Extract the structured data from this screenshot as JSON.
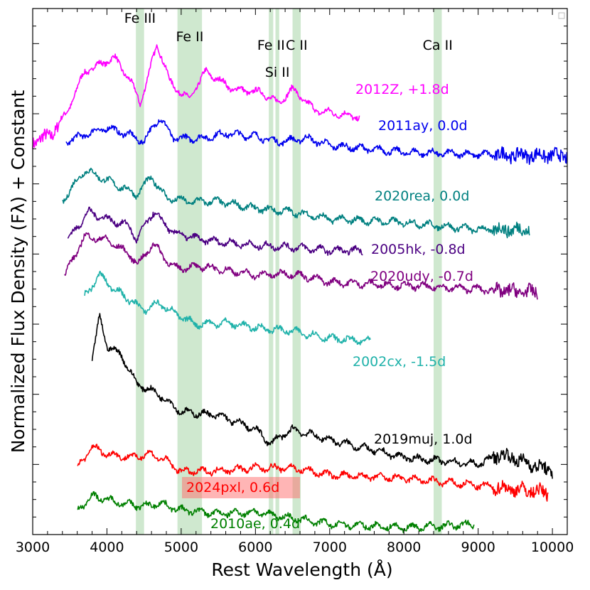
{
  "chart_data": {
    "type": "line",
    "title": "",
    "xlabel": "Rest Wavelength (Å)",
    "ylabel": "Normalized Flux Density (Fλ) + Constant",
    "xlim": [
      3000,
      10200
    ],
    "ylim": [
      0,
      7.5
    ],
    "xticks": [
      "3000",
      "4000",
      "5000",
      "6000",
      "7000",
      "8000",
      "9000",
      "10000"
    ],
    "line_features": [
      {
        "label": "Fe III",
        "range": [
          4390,
          4500
        ]
      },
      {
        "label": "Fe II",
        "range": [
          4950,
          5280
        ]
      },
      {
        "label": "Fe II",
        "range": [
          6180,
          6240
        ]
      },
      {
        "label": "Si II",
        "range": [
          6270,
          6320
        ]
      },
      {
        "label": "C II",
        "range": [
          6500,
          6610
        ]
      },
      {
        "label": "Ca II",
        "range": [
          8400,
          8510
        ]
      }
    ],
    "series": [
      {
        "name": "2012Z, +1.8d",
        "color": "#ff00ff",
        "x_range": [
          3000,
          7400
        ],
        "offset": 6.1,
        "anchors": [
          [
            3000,
            5.6
          ],
          [
            3250,
            5.7
          ],
          [
            3450,
            6.0
          ],
          [
            3700,
            6.6
          ],
          [
            3900,
            6.7
          ],
          [
            4100,
            6.8
          ],
          [
            4300,
            6.5
          ],
          [
            4450,
            6.15
          ],
          [
            4680,
            7.0
          ],
          [
            4850,
            6.45
          ],
          [
            5100,
            6.2
          ],
          [
            5330,
            6.6
          ],
          [
            5700,
            6.35
          ],
          [
            6100,
            6.3
          ],
          [
            6300,
            6.15
          ],
          [
            6500,
            6.35
          ],
          [
            6800,
            6.05
          ],
          [
            7100,
            6.0
          ],
          [
            7400,
            5.95
          ]
        ]
      },
      {
        "name": "2011ay, 0.0d",
        "color": "#0000ee",
        "x_range": [
          3450,
          10200
        ],
        "offset": 5.6,
        "anchors": [
          [
            3450,
            5.6
          ],
          [
            3700,
            5.7
          ],
          [
            4000,
            5.8
          ],
          [
            4300,
            5.7
          ],
          [
            4500,
            5.6
          ],
          [
            4700,
            5.95
          ],
          [
            4900,
            5.65
          ],
          [
            5300,
            5.65
          ],
          [
            5600,
            5.72
          ],
          [
            6000,
            5.68
          ],
          [
            6300,
            5.6
          ],
          [
            6700,
            5.65
          ],
          [
            7000,
            5.55
          ],
          [
            8000,
            5.45
          ],
          [
            9000,
            5.42
          ],
          [
            10200,
            5.4
          ]
        ]
      },
      {
        "name": "2020rea, 0.0d",
        "color": "#008080",
        "x_range": [
          3400,
          9700
        ],
        "offset": 4.6,
        "anchors": [
          [
            3400,
            4.75
          ],
          [
            3700,
            5.2
          ],
          [
            4000,
            5.05
          ],
          [
            4200,
            4.95
          ],
          [
            4400,
            4.85
          ],
          [
            4600,
            5.1
          ],
          [
            4800,
            4.8
          ],
          [
            5100,
            4.75
          ],
          [
            5500,
            4.75
          ],
          [
            6000,
            4.65
          ],
          [
            6500,
            4.6
          ],
          [
            7000,
            4.5
          ],
          [
            8000,
            4.45
          ],
          [
            9000,
            4.35
          ],
          [
            9700,
            4.35
          ]
        ]
      },
      {
        "name": "2005hk, -0.8d",
        "color": "#4b0082",
        "x_range": [
          3470,
          7450
        ],
        "offset": 4.1,
        "anchors": [
          [
            3470,
            4.2
          ],
          [
            3750,
            4.6
          ],
          [
            4000,
            4.5
          ],
          [
            4300,
            4.4
          ],
          [
            4400,
            4.2
          ],
          [
            4620,
            4.6
          ],
          [
            4900,
            4.3
          ],
          [
            5300,
            4.2
          ],
          [
            6000,
            4.12
          ],
          [
            6500,
            4.1
          ],
          [
            7000,
            4.05
          ],
          [
            7450,
            4.05
          ]
        ]
      },
      {
        "name": "2020udy, -0.7d",
        "color": "#800080",
        "x_range": [
          3430,
          9800
        ],
        "offset": 3.55,
        "anchors": [
          [
            3430,
            3.7
          ],
          [
            3700,
            4.25
          ],
          [
            4000,
            4.2
          ],
          [
            4300,
            4.0
          ],
          [
            4420,
            3.85
          ],
          [
            4620,
            4.15
          ],
          [
            4900,
            3.8
          ],
          [
            5300,
            3.82
          ],
          [
            6000,
            3.7
          ],
          [
            6500,
            3.72
          ],
          [
            7000,
            3.6
          ],
          [
            8000,
            3.55
          ],
          [
            9000,
            3.5
          ],
          [
            9800,
            3.45
          ]
        ]
      },
      {
        "name": "2002cx, -1.5d",
        "color": "#20b2aa",
        "x_range": [
          3700,
          7550
        ],
        "offset": 2.9,
        "anchors": [
          [
            3700,
            3.4
          ],
          [
            3900,
            3.7
          ],
          [
            4100,
            3.5
          ],
          [
            4300,
            3.35
          ],
          [
            4500,
            3.2
          ],
          [
            4700,
            3.3
          ],
          [
            5000,
            3.1
          ],
          [
            5200,
            3.0
          ],
          [
            5600,
            3.02
          ],
          [
            6000,
            2.95
          ],
          [
            6500,
            2.9
          ],
          [
            7000,
            2.8
          ],
          [
            7550,
            2.75
          ]
        ]
      },
      {
        "name": "2019muj, 1.0d",
        "color": "#000000",
        "x_range": [
          3800,
          10000
        ],
        "offset": 1.55,
        "anchors": [
          [
            3800,
            2.5
          ],
          [
            3900,
            3.1
          ],
          [
            4000,
            2.7
          ],
          [
            4200,
            2.55
          ],
          [
            4400,
            2.15
          ],
          [
            4700,
            2.0
          ],
          [
            5000,
            1.75
          ],
          [
            5500,
            1.7
          ],
          [
            6000,
            1.5
          ],
          [
            6200,
            1.3
          ],
          [
            6500,
            1.5
          ],
          [
            7000,
            1.35
          ],
          [
            8000,
            1.1
          ],
          [
            8500,
            1.05
          ],
          [
            9000,
            1.0
          ],
          [
            9300,
            1.15
          ],
          [
            10000,
            0.9
          ]
        ]
      },
      {
        "name": "2024pxl, 0.6d",
        "color": "#ff0000",
        "x_range": [
          3600,
          9950
        ],
        "offset": 0.9,
        "anchors": [
          [
            3600,
            0.95
          ],
          [
            3800,
            1.25
          ],
          [
            4000,
            1.15
          ],
          [
            4300,
            1.1
          ],
          [
            4600,
            1.15
          ],
          [
            4800,
            1.05
          ],
          [
            5000,
            0.9
          ],
          [
            5300,
            0.9
          ],
          [
            6000,
            0.95
          ],
          [
            6500,
            0.95
          ],
          [
            7000,
            0.85
          ],
          [
            8000,
            0.8
          ],
          [
            9000,
            0.7
          ],
          [
            9950,
            0.6
          ]
        ]
      },
      {
        "name": "2010ae, 0.4d",
        "color": "#008000",
        "x_range": [
          3600,
          8950
        ],
        "offset": 0.25,
        "anchors": [
          [
            3600,
            0.35
          ],
          [
            3800,
            0.55
          ],
          [
            4000,
            0.5
          ],
          [
            4200,
            0.45
          ],
          [
            4500,
            0.4
          ],
          [
            4700,
            0.45
          ],
          [
            5000,
            0.35
          ],
          [
            5500,
            0.3
          ],
          [
            6000,
            0.32
          ],
          [
            6400,
            0.25
          ],
          [
            6700,
            0.2
          ],
          [
            7000,
            0.15
          ],
          [
            8000,
            0.1
          ],
          [
            8500,
            0.12
          ],
          [
            8950,
            0.15
          ]
        ]
      }
    ]
  }
}
